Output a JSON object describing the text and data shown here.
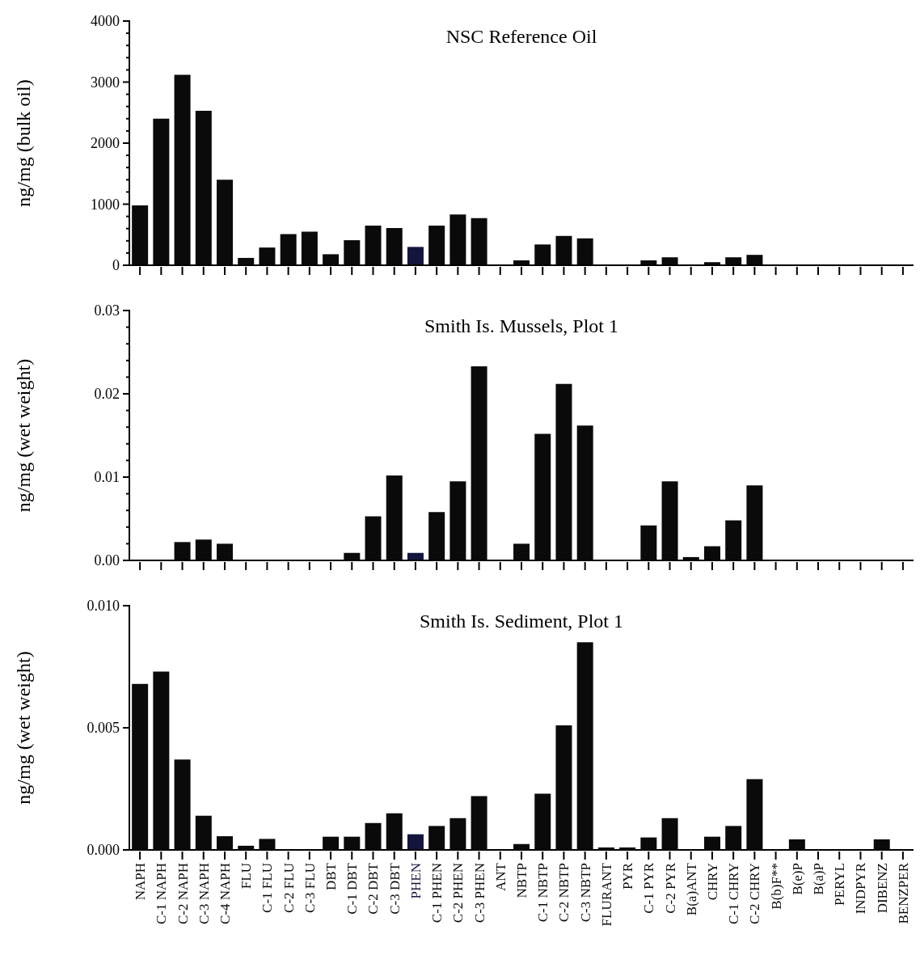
{
  "chart_data": [
    {
      "type": "bar",
      "title": "NSC Reference Oil",
      "ylabel": "ng/mg (bulk oil)",
      "categories": [
        null,
        null,
        null,
        null,
        null,
        null,
        null,
        null,
        null,
        null,
        null,
        null,
        null,
        null,
        null,
        null,
        null,
        null,
        null,
        null,
        null,
        null,
        null,
        null,
        null,
        null,
        null,
        null,
        null,
        null,
        null,
        null,
        null,
        null,
        null,
        null,
        null
      ],
      "values": [
        980,
        2400,
        3120,
        2530,
        1400,
        120,
        290,
        510,
        550,
        180,
        410,
        650,
        610,
        300,
        650,
        830,
        770,
        0,
        80,
        340,
        480,
        440,
        0,
        0,
        80,
        130,
        0,
        50,
        130,
        170,
        0,
        0,
        0,
        0,
        0,
        0,
        0
      ],
      "colors": [
        "#0a0a0a",
        "#0a0a0a",
        "#0a0a0a",
        "#0a0a0a",
        "#0a0a0a",
        "#0a0a0a",
        "#0a0a0a",
        "#0a0a0a",
        "#0a0a0a",
        "#0a0a0a",
        "#0a0a0a",
        "#0a0a0a",
        "#0a0a0a",
        "#14143c",
        "#0a0a0a",
        "#0a0a0a",
        "#0a0a0a",
        "#0a0a0a",
        "#0a0a0a",
        "#0a0a0a",
        "#0a0a0a",
        "#0a0a0a",
        "#0a0a0a",
        "#0a0a0a",
        "#0a0a0a",
        "#0a0a0a",
        "#0a0a0a",
        "#0a0a0a",
        "#0a0a0a",
        "#0a0a0a",
        "#0a0a0a",
        "#0a0a0a",
        "#0a0a0a",
        "#0a0a0a",
        "#0a0a0a",
        "#0a0a0a",
        "#0a0a0a"
      ],
      "ylim": [
        0,
        4000
      ],
      "yticks": [
        0,
        {
          "value": 200,
          "label": null
        },
        {
          "value": 400,
          "label": null
        },
        {
          "value": 600,
          "label": null
        },
        {
          "value": 800,
          "label": null
        },
        1000,
        {
          "value": 1200,
          "label": null
        },
        {
          "value": 1400,
          "label": null
        },
        {
          "value": 1600,
          "label": null
        },
        {
          "value": 1800,
          "label": null
        },
        2000,
        {
          "value": 2200,
          "label": null
        },
        {
          "value": 2400,
          "label": null
        },
        {
          "value": 2600,
          "label": null
        },
        {
          "value": 2800,
          "label": null
        },
        3000,
        {
          "value": 3200,
          "label": null
        },
        {
          "value": 3400,
          "label": null
        },
        {
          "value": 3600,
          "label": null
        },
        {
          "value": 3800,
          "label": null
        },
        4000
      ]
    },
    {
      "type": "bar",
      "title": "Smith Is. Mussels, Plot 1",
      "ylabel": "ng/mg (wet weight)",
      "categories": [
        null,
        null,
        null,
        null,
        null,
        null,
        null,
        null,
        null,
        null,
        null,
        null,
        null,
        null,
        null,
        null,
        null,
        null,
        null,
        null,
        null,
        null,
        null,
        null,
        null,
        null,
        null,
        null,
        null,
        null,
        null,
        null,
        null,
        null,
        null,
        null,
        null
      ],
      "values": [
        0,
        0,
        0.0022,
        0.0025,
        0.002,
        0,
        0,
        0,
        0,
        0,
        0.0009,
        0.0053,
        0.0102,
        0.0009,
        0.0058,
        0.0095,
        0.0233,
        0,
        0.002,
        0.0152,
        0.0212,
        0.0162,
        0,
        0,
        0.0042,
        0.0095,
        0.0004,
        0.0017,
        0.0048,
        0.009,
        0,
        0,
        0,
        0,
        0,
        0,
        0
      ],
      "colors": [
        "#0a0a0a",
        "#0a0a0a",
        "#0a0a0a",
        "#0a0a0a",
        "#0a0a0a",
        "#0a0a0a",
        "#0a0a0a",
        "#0a0a0a",
        "#0a0a0a",
        "#0a0a0a",
        "#0a0a0a",
        "#0a0a0a",
        "#0a0a0a",
        "#14143c",
        "#0a0a0a",
        "#0a0a0a",
        "#0a0a0a",
        "#0a0a0a",
        "#0a0a0a",
        "#0a0a0a",
        "#0a0a0a",
        "#0a0a0a",
        "#0a0a0a",
        "#0a0a0a",
        "#0a0a0a",
        "#0a0a0a",
        "#0a0a0a",
        "#0a0a0a",
        "#0a0a0a",
        "#0a0a0a",
        "#0a0a0a",
        "#0a0a0a",
        "#0a0a0a",
        "#0a0a0a",
        "#0a0a0a",
        "#0a0a0a",
        "#0a0a0a"
      ],
      "ylim": [
        0,
        0.03
      ],
      "yticks": [
        {
          "value": 0,
          "label": "0.00"
        },
        {
          "value": 0.002,
          "label": null
        },
        {
          "value": 0.004,
          "label": null
        },
        {
          "value": 0.006,
          "label": null
        },
        {
          "value": 0.008,
          "label": null
        },
        0.01,
        {
          "value": 0.012,
          "label": null
        },
        {
          "value": 0.014,
          "label": null
        },
        {
          "value": 0.016,
          "label": null
        },
        {
          "value": 0.018,
          "label": null
        },
        0.02,
        {
          "value": 0.022,
          "label": null
        },
        {
          "value": 0.024,
          "label": null
        },
        {
          "value": 0.026,
          "label": null
        },
        {
          "value": 0.028,
          "label": null
        },
        0.03
      ]
    },
    {
      "type": "bar",
      "title": "Smith Is. Sediment, Plot 1",
      "ylabel": "ng/mg (wet weight)",
      "categories": [
        "NAPH",
        "C-1 NAPH",
        "C-2 NAPH",
        "C-3 NAPH",
        "C-4 NAPH",
        "FLU",
        "C-1 FLU",
        "C-2 FLU",
        "C-3 FLU",
        "DBT",
        "C-1 DBT",
        "C-2 DBT",
        "C-3 DBT",
        "PHEN",
        "C-1 PHEN",
        "C-2 PHEN",
        "C-3 PHEN",
        "ANT",
        "NBTP",
        "C-1 NBTP",
        "C-2 NBTP",
        "C-3 NBTP",
        "FLURANT",
        "PYR",
        "C-1 PYR",
        "C-2 PYR",
        "B(a)ANT",
        "CHRY",
        "C-1 CHRY",
        "C-2 CHRY",
        "B(b)F**",
        "B(e)P",
        "B(a)P",
        "PERYL",
        "INDPYR",
        "DIBENZ",
        "BENZPER"
      ],
      "values": [
        0.0068,
        0.0073,
        0.0037,
        0.0014,
        0.00056,
        0.00017,
        0.00045,
        0,
        0,
        0.00054,
        0.00054,
        0.0011,
        0.0015,
        0.00064,
        0.00098,
        0.0013,
        0.0022,
        0,
        0.00024,
        0.0023,
        0.0051,
        0.0085,
        0.0001,
        0.0001,
        0.00051,
        0.0013,
        0,
        0.00054,
        0.00098,
        0.0029,
        0,
        0.00043,
        0,
        0,
        0,
        0.00043,
        0
      ],
      "colors": [
        "#0a0a0a",
        "#0a0a0a",
        "#0a0a0a",
        "#0a0a0a",
        "#0a0a0a",
        "#0a0a0a",
        "#0a0a0a",
        "#0a0a0a",
        "#0a0a0a",
        "#0a0a0a",
        "#0a0a0a",
        "#0a0a0a",
        "#0a0a0a",
        "#14143c",
        "#0a0a0a",
        "#0a0a0a",
        "#0a0a0a",
        "#0a0a0a",
        "#0a0a0a",
        "#0a0a0a",
        "#0a0a0a",
        "#0a0a0a",
        "#0a0a0a",
        "#0a0a0a",
        "#0a0a0a",
        "#0a0a0a",
        "#0a0a0a",
        "#0a0a0a",
        "#0a0a0a",
        "#0a0a0a",
        "#0a0a0a",
        "#0a0a0a",
        "#0a0a0a",
        "#0a0a0a",
        "#0a0a0a",
        "#0a0a0a",
        "#0a0a0a"
      ],
      "ylim": [
        0,
        0.01
      ],
      "yticks": [
        {
          "value": 0,
          "label": "0.000"
        },
        {
          "value": 0.005,
          "label": "0.005"
        },
        {
          "value": 0.01,
          "label": "0.010"
        }
      ]
    }
  ]
}
